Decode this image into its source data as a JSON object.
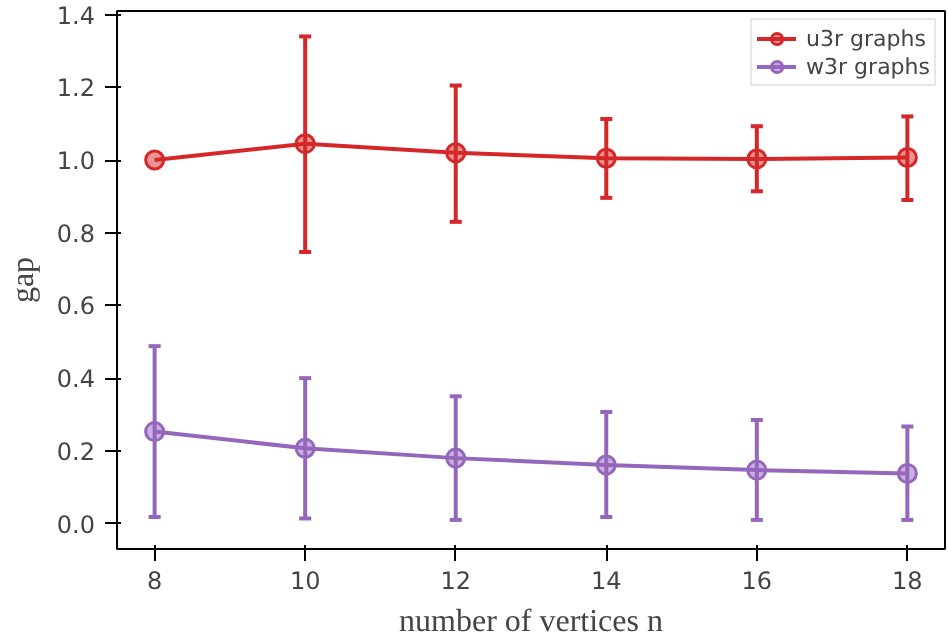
{
  "chart_data": {
    "type": "line",
    "xlabel": "number of vertices n",
    "ylabel": "gap",
    "x": [
      8,
      10,
      12,
      14,
      16,
      18
    ],
    "series": [
      {
        "name": "u3r graphs",
        "color": "#d62728",
        "values": [
          1.0,
          1.045,
          1.02,
          1.005,
          1.003,
          1.007
        ],
        "errors": [
          null,
          [
            0.747,
            1.34
          ],
          [
            0.83,
            1.205
          ],
          [
            0.896,
            1.113
          ],
          [
            0.914,
            1.093
          ],
          [
            0.89,
            1.12
          ]
        ]
      },
      {
        "name": "w3r graphs",
        "color": "#9467bd",
        "values": [
          0.253,
          0.207,
          0.18,
          0.161,
          0.147,
          0.138
        ],
        "errors": [
          [
            0.018,
            0.488
          ],
          [
            0.014,
            0.4
          ],
          [
            0.01,
            0.35
          ],
          [
            0.018,
            0.307
          ],
          [
            0.01,
            0.285
          ],
          [
            0.01,
            0.267
          ]
        ]
      }
    ],
    "xlim": [
      7.5,
      18.5
    ],
    "ylim": [
      -0.07,
      1.41
    ],
    "xticks": [
      8,
      10,
      12,
      14,
      16,
      18
    ],
    "yticks": [
      {
        "value": 0,
        "label": "0.0"
      },
      {
        "value": 0.2,
        "label": "0.2"
      },
      {
        "value": 0.4,
        "label": "0.4"
      },
      {
        "value": 0.6,
        "label": "0.6"
      },
      {
        "value": 0.8,
        "label": "0.8"
      },
      {
        "value": 1.0,
        "label": "1.0"
      },
      {
        "value": 1.2,
        "label": "1.2"
      },
      {
        "value": 1.4,
        "label": "1.4"
      }
    ],
    "legend": "top right",
    "marker": "circle",
    "line_style": "solid",
    "grid": false
  }
}
